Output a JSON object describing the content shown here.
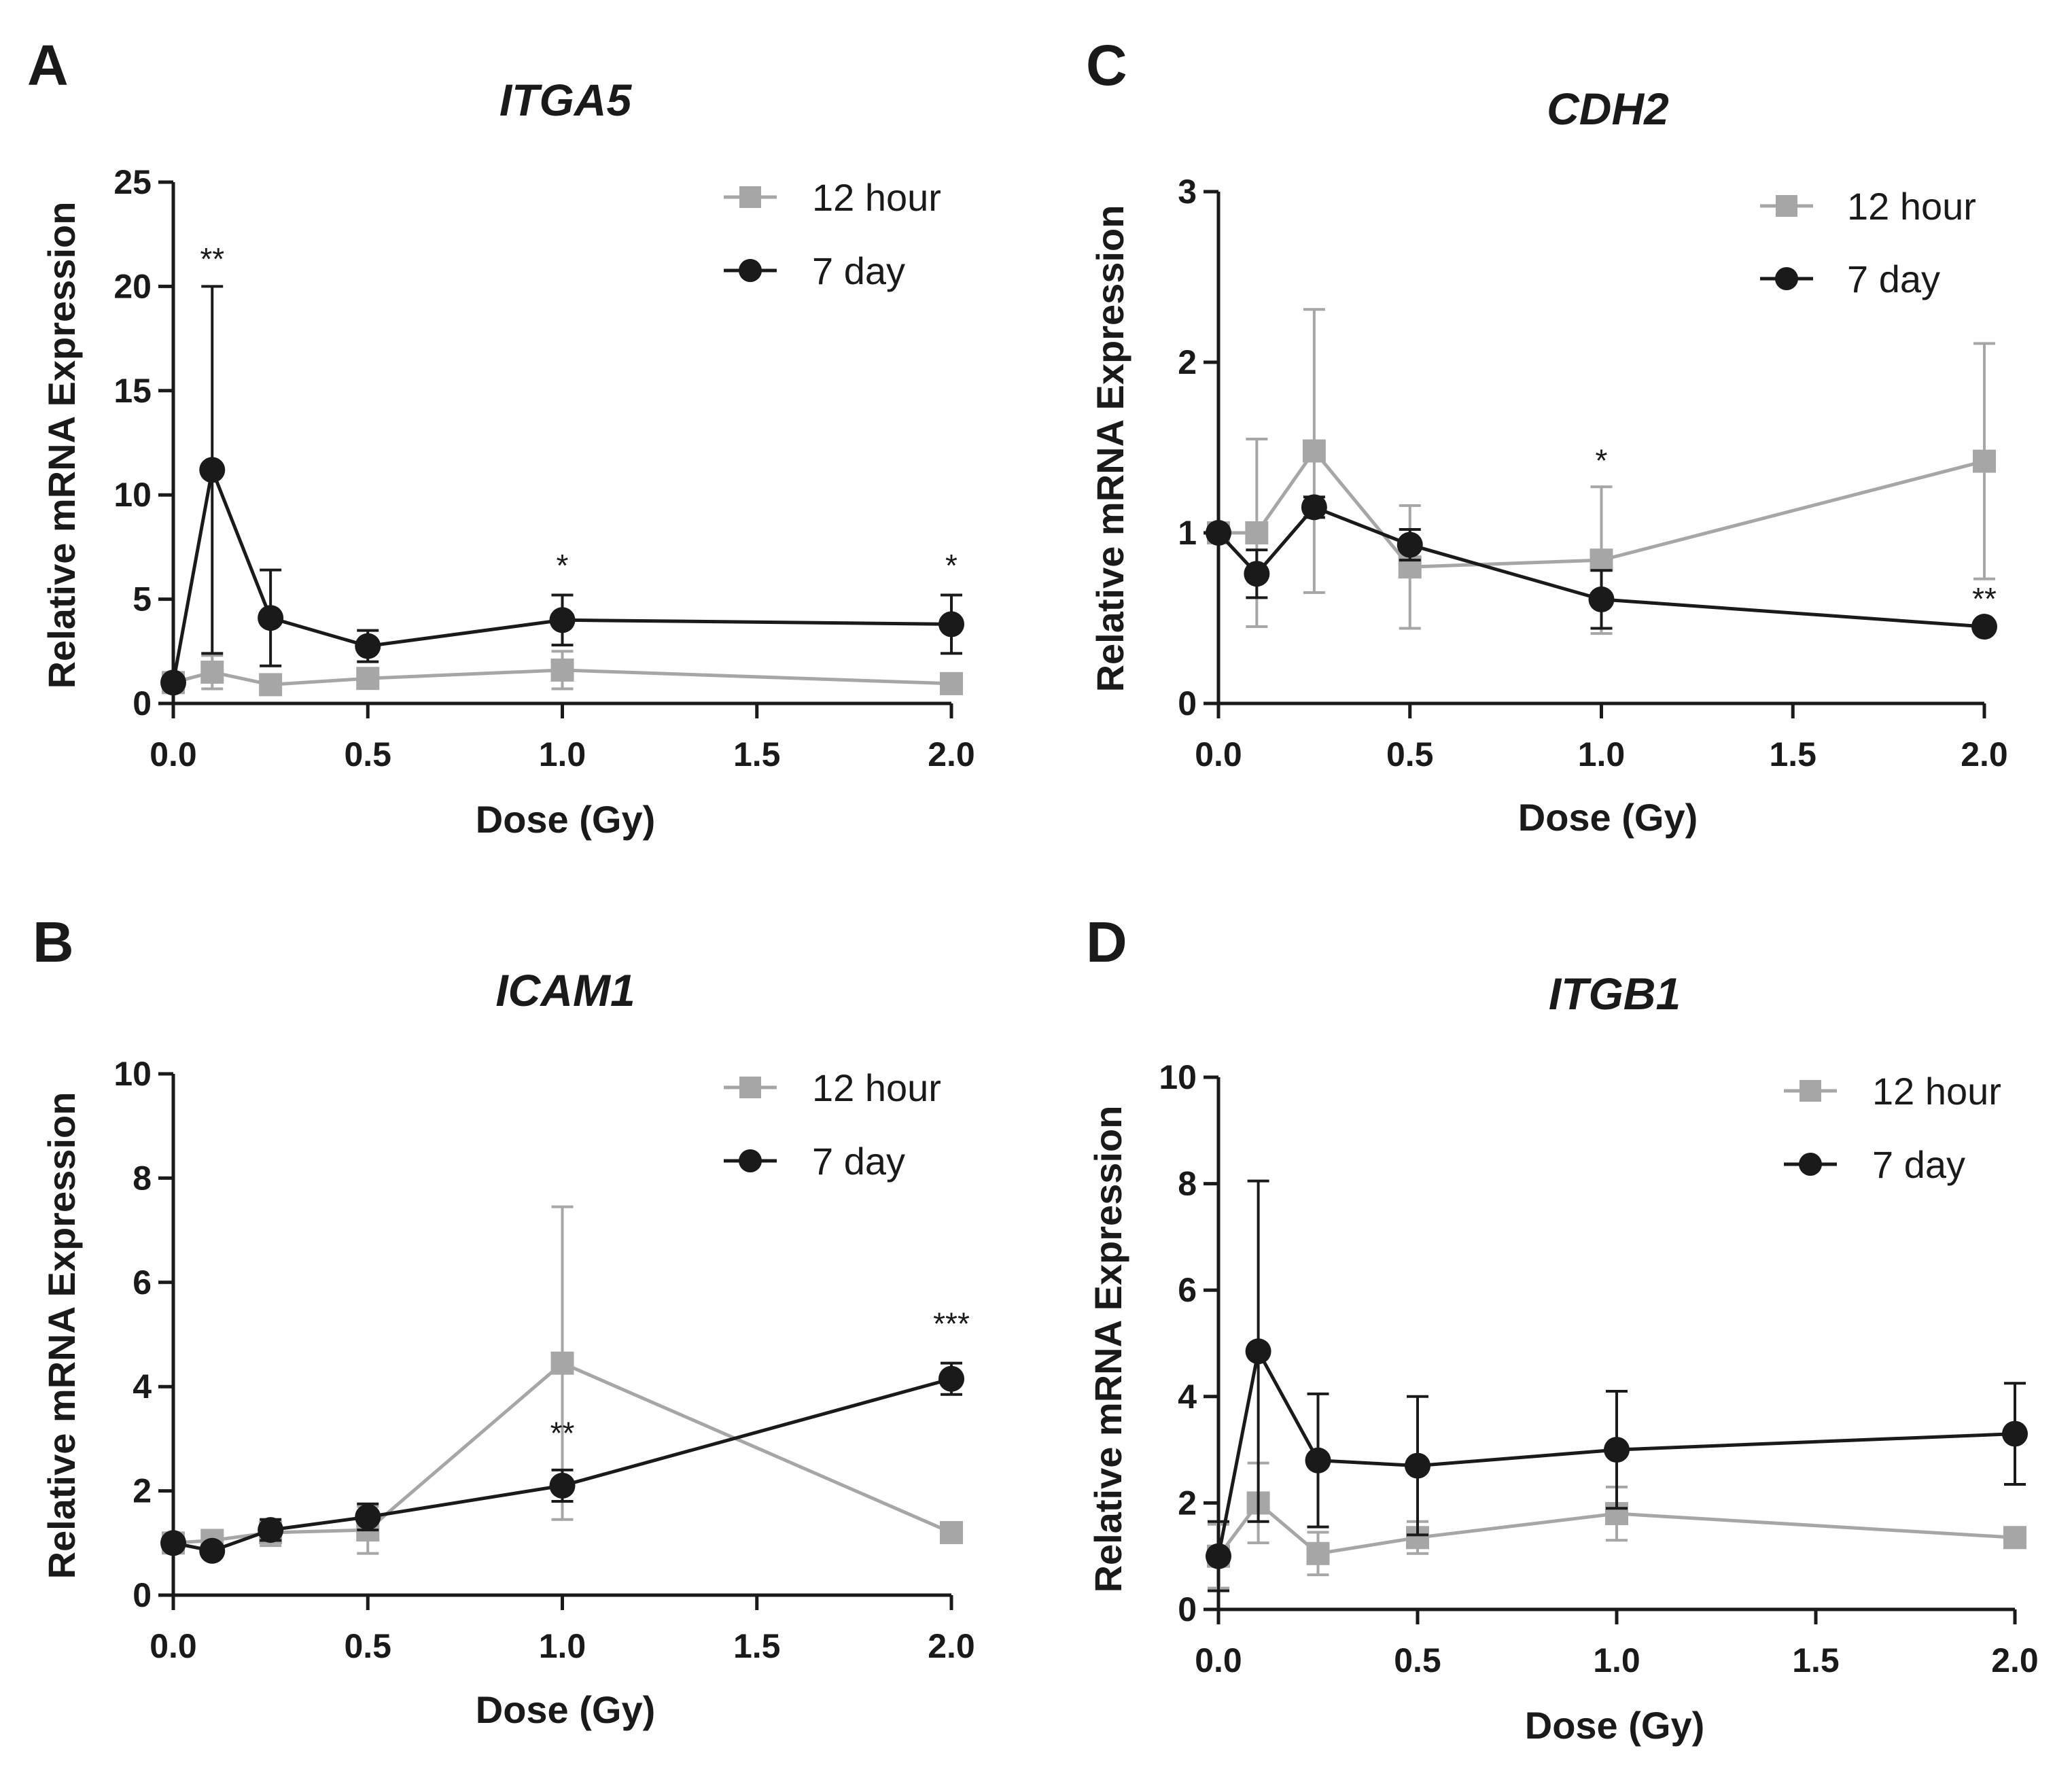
{
  "colors": {
    "series_12h": "#a6a6a6",
    "series_7d": "#1a1a1a",
    "axis": "#1a1a1a"
  },
  "chart_data": [
    {
      "panel": "A",
      "type": "line",
      "title": "ITGA5",
      "xlabel": "Dose (Gy)",
      "ylabel": "Relative mRNA Expression",
      "xlim": [
        0,
        2
      ],
      "ylim": [
        0,
        25
      ],
      "xticks": [
        "0.0",
        "0.5",
        "1.0",
        "1.5",
        "2.0"
      ],
      "yticks": [
        "0",
        "5",
        "10",
        "15",
        "20",
        "25"
      ],
      "legend": [
        "12 hour",
        "7 day"
      ],
      "series": [
        {
          "name": "12 hour",
          "marker": "square",
          "x": [
            0,
            0.1,
            0.25,
            0.5,
            1.0,
            2.0
          ],
          "y": [
            1.0,
            1.5,
            0.9,
            1.2,
            1.6,
            0.95
          ],
          "err": [
            0.1,
            0.8,
            0.2,
            0.3,
            0.9,
            0.1
          ]
        },
        {
          "name": "7 day",
          "marker": "circle",
          "x": [
            0,
            0.1,
            0.25,
            0.5,
            1.0,
            2.0
          ],
          "y": [
            1.0,
            11.2,
            4.1,
            2.75,
            4.0,
            3.8
          ],
          "err": [
            0.1,
            8.8,
            2.3,
            0.75,
            1.2,
            1.4
          ]
        }
      ],
      "annotations": [
        {
          "text": "**",
          "x": 0.1,
          "y": 20.8
        },
        {
          "text": "*",
          "x": 1.0,
          "y": 6.1
        },
        {
          "text": "*",
          "x": 2.0,
          "y": 6.1
        }
      ]
    },
    {
      "panel": "C",
      "type": "line",
      "title": "CDH2",
      "xlabel": "Dose (Gy)",
      "ylabel": "Relative mRNA Expression",
      "xlim": [
        0,
        2
      ],
      "ylim": [
        0,
        3
      ],
      "xticks": [
        "0.0",
        "0.5",
        "1.0",
        "1.5",
        "2.0"
      ],
      "yticks": [
        "0",
        "1",
        "2",
        "3"
      ],
      "legend": [
        "12 hour",
        "7 day"
      ],
      "series": [
        {
          "name": "12 hour",
          "marker": "square",
          "x": [
            0,
            0.1,
            0.25,
            0.5,
            1.0,
            2.0
          ],
          "y": [
            1.0,
            1.0,
            1.48,
            0.8,
            0.84,
            1.42
          ],
          "err": [
            0.03,
            0.55,
            0.83,
            0.36,
            0.43,
            0.69
          ]
        },
        {
          "name": "7 day",
          "marker": "circle",
          "x": [
            0,
            0.1,
            0.25,
            0.5,
            1.0,
            2.0
          ],
          "y": [
            1.0,
            0.76,
            1.15,
            0.93,
            0.61,
            0.45
          ],
          "err": [
            0.03,
            0.14,
            0.06,
            0.09,
            0.17,
            0.02
          ]
        }
      ],
      "annotations": [
        {
          "text": "*",
          "x": 1.0,
          "y": 1.36
        },
        {
          "text": "**",
          "x": 2.0,
          "y": 0.55
        }
      ]
    },
    {
      "panel": "B",
      "type": "line",
      "title": "ICAM1",
      "xlabel": "Dose (Gy)",
      "ylabel": "Relative mRNA Expression",
      "xlim": [
        0,
        2
      ],
      "ylim": [
        0,
        10
      ],
      "xticks": [
        "0.0",
        "0.5",
        "1.0",
        "1.5",
        "2.0"
      ],
      "yticks": [
        "0",
        "2",
        "4",
        "6",
        "8",
        "10"
      ],
      "legend": [
        "12 hour",
        "7 day"
      ],
      "series": [
        {
          "name": "12 hour",
          "marker": "square",
          "x": [
            0,
            0.1,
            0.25,
            0.5,
            1.0,
            2.0
          ],
          "y": [
            1.0,
            1.05,
            1.2,
            1.25,
            4.45,
            1.2
          ],
          "err": [
            0.05,
            0.1,
            0.25,
            0.45,
            3.0,
            0.1
          ]
        },
        {
          "name": "7 day",
          "marker": "circle",
          "x": [
            0,
            0.1,
            0.25,
            0.5,
            1.0,
            2.0
          ],
          "y": [
            1.0,
            0.85,
            1.25,
            1.5,
            2.1,
            4.15
          ],
          "err": [
            0.05,
            0.1,
            0.2,
            0.25,
            0.3,
            0.3
          ]
        }
      ],
      "annotations": [
        {
          "text": "**",
          "x": 1.0,
          "y": 2.9
        },
        {
          "text": "***",
          "x": 2.0,
          "y": 5.0
        }
      ]
    },
    {
      "panel": "D",
      "type": "line",
      "title": "ITGB1",
      "xlabel": "Dose (Gy)",
      "ylabel": "Relative mRNA Expression",
      "xlim": [
        0,
        2
      ],
      "ylim": [
        0,
        10
      ],
      "xticks": [
        "0.0",
        "0.5",
        "1.0",
        "1.5",
        "2.0"
      ],
      "yticks": [
        "0",
        "2",
        "4",
        "6",
        "8",
        "10"
      ],
      "legend": [
        "12 hour",
        "7 day"
      ],
      "series": [
        {
          "name": "12 hour",
          "marker": "square",
          "x": [
            0,
            0.1,
            0.25,
            0.5,
            1.0,
            2.0
          ],
          "y": [
            1.0,
            2.0,
            1.05,
            1.35,
            1.8,
            1.35
          ],
          "err": [
            0.6,
            0.75,
            0.4,
            0.3,
            0.5,
            0.15
          ]
        },
        {
          "name": "7 day",
          "marker": "circle",
          "x": [
            0,
            0.1,
            0.25,
            0.5,
            1.0,
            2.0
          ],
          "y": [
            1.0,
            4.85,
            2.8,
            2.7,
            3.0,
            3.3
          ],
          "err": [
            0.65,
            3.2,
            1.25,
            1.3,
            1.1,
            0.95
          ]
        }
      ],
      "annotations": []
    }
  ]
}
